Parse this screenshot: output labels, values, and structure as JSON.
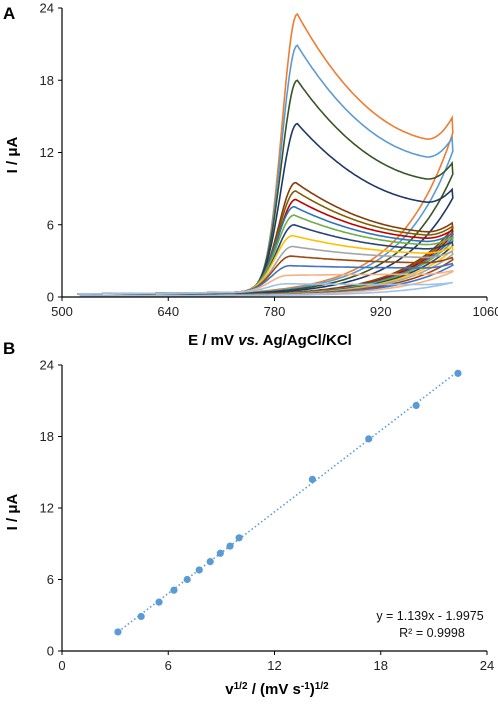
{
  "chart_data": [
    {
      "panel": "A",
      "type": "line",
      "title": "",
      "xlabel": "E / mV vs. Ag/AgCl/KCl",
      "xlabel_parts": {
        "pre": "E / mV ",
        "italic": "vs.",
        "post": " Ag/AgCl/KCl"
      },
      "ylabel": "I / μA",
      "xlim": [
        500,
        1060
      ],
      "ylim": [
        0,
        24
      ],
      "xticks": [
        500,
        640,
        780,
        920,
        1060
      ],
      "yticks": [
        0,
        6,
        12,
        18,
        24
      ],
      "grid": false,
      "legend": "none",
      "series": [
        {
          "color": "#ED7D31",
          "peak": {
            "x": 810,
            "y": 23.5
          },
          "end": {
            "x": 1015,
            "y": 15.0
          }
        },
        {
          "color": "#5B9BD5",
          "peak": {
            "x": 810,
            "y": 20.9
          },
          "end": {
            "x": 1015,
            "y": 13.3
          }
        },
        {
          "color": "#375623",
          "peak": {
            "x": 810,
            "y": 18.0
          },
          "end": {
            "x": 1015,
            "y": 11.2
          }
        },
        {
          "color": "#1F3864",
          "peak": {
            "x": 810,
            "y": 14.4
          },
          "end": {
            "x": 1015,
            "y": 9.0
          }
        },
        {
          "color": "#843C0C",
          "peak": {
            "x": 808,
            "y": 9.5
          },
          "end": {
            "x": 1015,
            "y": 6.2
          }
        },
        {
          "color": "#7F6000",
          "peak": {
            "x": 808,
            "y": 8.8
          },
          "end": {
            "x": 1015,
            "y": 5.9
          }
        },
        {
          "color": "#C00000",
          "peak": {
            "x": 808,
            "y": 8.1
          },
          "end": {
            "x": 1015,
            "y": 5.6
          }
        },
        {
          "color": "#2E75B6",
          "peak": {
            "x": 806,
            "y": 7.5
          },
          "end": {
            "x": 1015,
            "y": 5.3
          }
        },
        {
          "color": "#70AD47",
          "peak": {
            "x": 806,
            "y": 6.8
          },
          "end": {
            "x": 1015,
            "y": 5.0
          }
        },
        {
          "color": "#264478",
          "peak": {
            "x": 806,
            "y": 6.0
          },
          "end": {
            "x": 1015,
            "y": 4.6
          }
        },
        {
          "color": "#FFC000",
          "peak": {
            "x": 804,
            "y": 5.1
          },
          "end": {
            "x": 1015,
            "y": 4.2
          }
        },
        {
          "color": "#A5A5A5",
          "peak": {
            "x": 804,
            "y": 4.2
          },
          "end": {
            "x": 1015,
            "y": 3.8
          }
        },
        {
          "color": "#9E480E",
          "peak": {
            "x": 802,
            "y": 3.4
          },
          "end": {
            "x": 1015,
            "y": 3.3
          }
        },
        {
          "color": "#4472C4",
          "peak": {
            "x": 800,
            "y": 2.6
          },
          "end": {
            "x": 1015,
            "y": 2.8
          }
        },
        {
          "color": "#F4B183",
          "peak": {
            "x": 798,
            "y": 1.8
          },
          "end": {
            "x": 1015,
            "y": 2.2
          }
        },
        {
          "color": "#9DC3E6",
          "peak": {
            "x": 796,
            "y": 1.1
          },
          "end": {
            "x": 1015,
            "y": 1.2
          }
        }
      ]
    },
    {
      "panel": "B",
      "type": "scatter",
      "title": "",
      "xlabel": "v1/2 / (mV s-1)1/2",
      "xlabel_parts": {
        "v": "v",
        "v_sup": "1/2",
        "mid": " / (mV s",
        "s_sup": "-1",
        "close": ")",
        "close_sup": "1/2"
      },
      "ylabel": "I / μA",
      "xlim": [
        0,
        24
      ],
      "ylim": [
        0,
        24
      ],
      "xticks": [
        0,
        6,
        12,
        18,
        24
      ],
      "yticks": [
        0,
        6,
        12,
        18,
        24
      ],
      "grid": false,
      "legend": "none",
      "series": [
        {
          "color": "#5B9BD5",
          "x": [
            3.16,
            4.47,
            5.48,
            6.32,
            7.07,
            7.75,
            8.37,
            8.94,
            9.49,
            10.0,
            14.14,
            17.32,
            20.0,
            22.36
          ],
          "y": [
            1.6,
            2.9,
            4.1,
            5.1,
            6.0,
            6.8,
            7.5,
            8.2,
            8.8,
            9.5,
            14.4,
            17.8,
            20.6,
            23.3
          ]
        }
      ],
      "trendline": {
        "slope": 1.139,
        "intercept": -1.9975,
        "x_range": [
          3.0,
          22.5
        ],
        "style": "dotted",
        "color": "#5B9BD5"
      },
      "equation": "y = 1.139x - 1.9975",
      "r2": "R² = 0.9998"
    }
  ]
}
